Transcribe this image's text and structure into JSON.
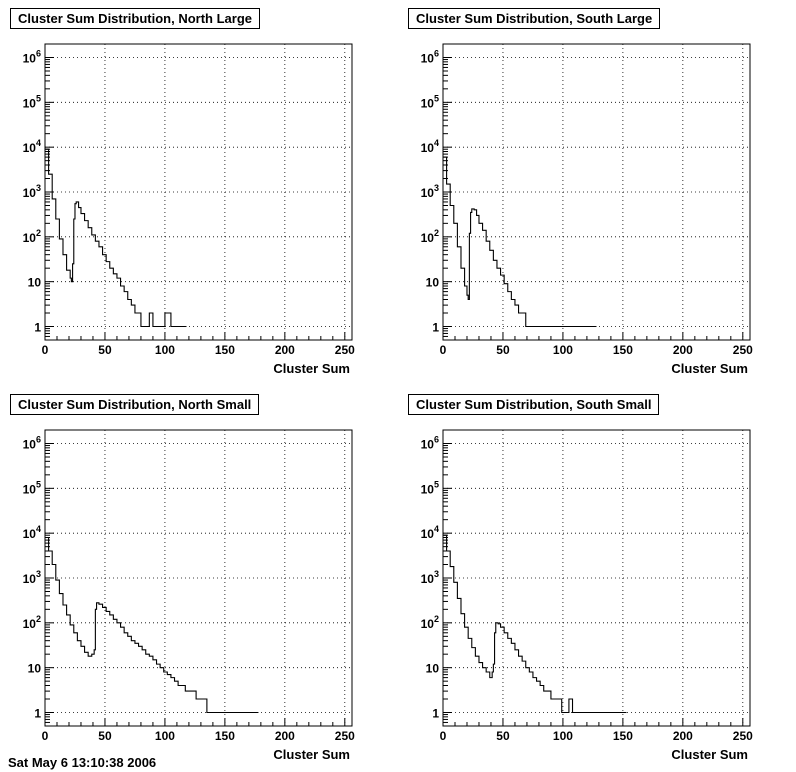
{
  "chart_data": [
    {
      "type": "line",
      "title": "Cluster Sum Distribution, North Large",
      "xlabel": "Cluster Sum",
      "ylabel": "",
      "xlim": [
        0,
        256
      ],
      "ylim": [
        0.5,
        2000000
      ],
      "yscale": "log",
      "grid": true,
      "xticks": [
        "0",
        "50",
        "100",
        "150",
        "200",
        "250"
      ],
      "yticks": [
        "1",
        "10",
        "10^2",
        "10^3",
        "10^4",
        "10^5",
        "10^6"
      ],
      "series": [
        {
          "points": [
            [
              0,
              9000
            ],
            [
              3,
              2500
            ],
            [
              6,
              700
            ],
            [
              9,
              250
            ],
            [
              12,
              90
            ],
            [
              15,
              40
            ],
            [
              18,
              18
            ],
            [
              21,
              12
            ],
            [
              22,
              10
            ],
            [
              23,
              25
            ],
            [
              24,
              250
            ],
            [
              25,
              550
            ],
            [
              26,
              600
            ],
            [
              28,
              450
            ],
            [
              30,
              330
            ],
            [
              33,
              230
            ],
            [
              36,
              160
            ],
            [
              39,
              110
            ],
            [
              42,
              80
            ],
            [
              45,
              60
            ],
            [
              48,
              40
            ],
            [
              51,
              28
            ],
            [
              54,
              20
            ],
            [
              57,
              15
            ],
            [
              60,
              12
            ],
            [
              63,
              8
            ],
            [
              66,
              6
            ],
            [
              69,
              4
            ],
            [
              72,
              3
            ],
            [
              75,
              2
            ],
            [
              78,
              2
            ],
            [
              80,
              1
            ],
            [
              84,
              1
            ],
            [
              87,
              2
            ],
            [
              90,
              1
            ],
            [
              93,
              1
            ],
            [
              96,
              1
            ],
            [
              100,
              2
            ],
            [
              105,
              1
            ],
            [
              110,
              1
            ],
            [
              115,
              1
            ]
          ]
        }
      ]
    },
    {
      "type": "line",
      "title": "Cluster Sum Distribution, South Large",
      "xlabel": "Cluster Sum",
      "ylabel": "",
      "xlim": [
        0,
        256
      ],
      "ylim": [
        0.5,
        2000000
      ],
      "yscale": "log",
      "grid": true,
      "xticks": [
        "0",
        "50",
        "100",
        "150",
        "200",
        "250"
      ],
      "yticks": [
        "1",
        "10",
        "10^2",
        "10^3",
        "10^4",
        "10^5",
        "10^6"
      ],
      "series": [
        {
          "points": [
            [
              0,
              6000
            ],
            [
              3,
              1500
            ],
            [
              6,
              500
            ],
            [
              9,
              200
            ],
            [
              12,
              60
            ],
            [
              15,
              20
            ],
            [
              18,
              8
            ],
            [
              20,
              5
            ],
            [
              21,
              4
            ],
            [
              22,
              120
            ],
            [
              23,
              350
            ],
            [
              24,
              420
            ],
            [
              26,
              400
            ],
            [
              28,
              300
            ],
            [
              30,
              200
            ],
            [
              33,
              140
            ],
            [
              36,
              80
            ],
            [
              39,
              50
            ],
            [
              42,
              30
            ],
            [
              45,
              20
            ],
            [
              48,
              14
            ],
            [
              51,
              9
            ],
            [
              54,
              6
            ],
            [
              57,
              4
            ],
            [
              60,
              3
            ],
            [
              63,
              2
            ],
            [
              66,
              2
            ],
            [
              69,
              1
            ],
            [
              72,
              1
            ],
            [
              75,
              1
            ],
            [
              80,
              1
            ],
            [
              85,
              1
            ],
            [
              90,
              1
            ],
            [
              95,
              1
            ],
            [
              100,
              1
            ],
            [
              105,
              1
            ],
            [
              110,
              1
            ],
            [
              115,
              1
            ],
            [
              120,
              1
            ],
            [
              125,
              1
            ]
          ]
        }
      ]
    },
    {
      "type": "line",
      "title": "Cluster Sum Distribution, North Small",
      "xlabel": "Cluster Sum",
      "ylabel": "",
      "xlim": [
        0,
        256
      ],
      "ylim": [
        0.5,
        2000000
      ],
      "yscale": "log",
      "grid": true,
      "xticks": [
        "0",
        "50",
        "100",
        "150",
        "200",
        "250"
      ],
      "yticks": [
        "1",
        "10",
        "10^2",
        "10^3",
        "10^4",
        "10^5",
        "10^6"
      ],
      "series": [
        {
          "points": [
            [
              0,
              8000
            ],
            [
              3,
              4000
            ],
            [
              6,
              2000
            ],
            [
              9,
              900
            ],
            [
              12,
              450
            ],
            [
              15,
              250
            ],
            [
              18,
              150
            ],
            [
              21,
              90
            ],
            [
              24,
              60
            ],
            [
              27,
              40
            ],
            [
              30,
              30
            ],
            [
              33,
              22
            ],
            [
              36,
              18
            ],
            [
              39,
              20
            ],
            [
              41,
              25
            ],
            [
              42,
              200
            ],
            [
              43,
              280
            ],
            [
              45,
              260
            ],
            [
              48,
              220
            ],
            [
              51,
              180
            ],
            [
              54,
              150
            ],
            [
              57,
              120
            ],
            [
              60,
              100
            ],
            [
              63,
              80
            ],
            [
              66,
              60
            ],
            [
              69,
              50
            ],
            [
              72,
              40
            ],
            [
              75,
              35
            ],
            [
              78,
              30
            ],
            [
              81,
              25
            ],
            [
              84,
              20
            ],
            [
              87,
              18
            ],
            [
              90,
              15
            ],
            [
              93,
              12
            ],
            [
              96,
              10
            ],
            [
              99,
              8
            ],
            [
              102,
              7
            ],
            [
              105,
              6
            ],
            [
              108,
              5
            ],
            [
              111,
              4
            ],
            [
              114,
              4
            ],
            [
              117,
              3
            ],
            [
              120,
              3
            ],
            [
              123,
              3
            ],
            [
              126,
              2
            ],
            [
              129,
              2
            ],
            [
              132,
              2
            ],
            [
              135,
              1
            ],
            [
              140,
              1
            ],
            [
              145,
              1
            ],
            [
              150,
              1
            ],
            [
              155,
              1
            ],
            [
              160,
              1
            ],
            [
              165,
              1
            ],
            [
              170,
              1
            ],
            [
              175,
              1
            ]
          ]
        }
      ]
    },
    {
      "type": "line",
      "title": "Cluster Sum Distribution, South Small",
      "xlabel": "Cluster Sum",
      "ylabel": "",
      "xlim": [
        0,
        256
      ],
      "ylim": [
        0.5,
        2000000
      ],
      "yscale": "log",
      "grid": true,
      "xticks": [
        "0",
        "50",
        "100",
        "150",
        "200",
        "250"
      ],
      "yticks": [
        "1",
        "10",
        "10^2",
        "10^3",
        "10^4",
        "10^5",
        "10^6"
      ],
      "series": [
        {
          "points": [
            [
              0,
              9000
            ],
            [
              3,
              4000
            ],
            [
              6,
              1800
            ],
            [
              9,
              800
            ],
            [
              12,
              350
            ],
            [
              15,
              160
            ],
            [
              18,
              80
            ],
            [
              21,
              45
            ],
            [
              24,
              28
            ],
            [
              27,
              18
            ],
            [
              30,
              13
            ],
            [
              33,
              10
            ],
            [
              36,
              8
            ],
            [
              39,
              6
            ],
            [
              41,
              8
            ],
            [
              42,
              12
            ],
            [
              43,
              60
            ],
            [
              44,
              100
            ],
            [
              46,
              95
            ],
            [
              48,
              80
            ],
            [
              51,
              60
            ],
            [
              54,
              45
            ],
            [
              57,
              35
            ],
            [
              60,
              25
            ],
            [
              63,
              18
            ],
            [
              66,
              14
            ],
            [
              69,
              10
            ],
            [
              72,
              8
            ],
            [
              75,
              6
            ],
            [
              78,
              5
            ],
            [
              81,
              4
            ],
            [
              84,
              3
            ],
            [
              87,
              3
            ],
            [
              90,
              2
            ],
            [
              93,
              2
            ],
            [
              96,
              2
            ],
            [
              99,
              1
            ],
            [
              102,
              1
            ],
            [
              105,
              2
            ],
            [
              108,
              1
            ],
            [
              111,
              1
            ],
            [
              120,
              1
            ],
            [
              130,
              1
            ],
            [
              140,
              1
            ],
            [
              150,
              1
            ]
          ]
        }
      ]
    }
  ],
  "footer": {
    "text": "Sat May  6 13:10:38 2006"
  }
}
